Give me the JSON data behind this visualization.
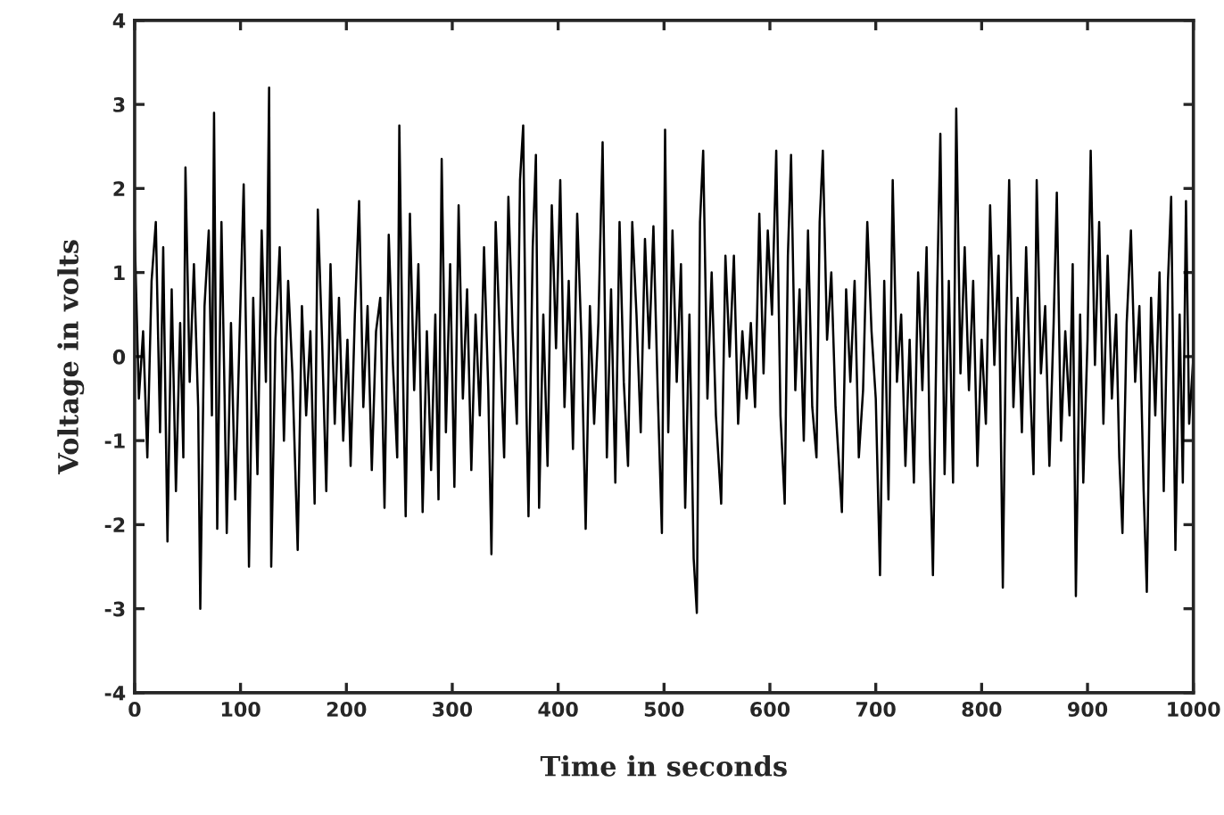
{
  "chart_data": {
    "type": "line",
    "xlabel": "Time in seconds",
    "ylabel": "Voltage in volts",
    "xlim": [
      0,
      1000
    ],
    "xticks": [
      0,
      100,
      200,
      300,
      400,
      500,
      600,
      700,
      800,
      900,
      1000
    ],
    "ylim": [
      -4,
      4
    ],
    "yticks": [
      -4,
      -3,
      -2,
      -1,
      0,
      1,
      2,
      3,
      4
    ],
    "grid": false,
    "marker": "none",
    "line_style": "solid",
    "x": [
      0,
      4,
      8,
      12,
      16,
      20,
      24,
      27,
      31,
      35,
      39,
      43,
      46,
      48,
      52,
      56,
      60,
      62,
      66,
      70,
      73,
      75,
      78,
      82,
      85,
      87,
      91,
      95,
      99,
      103,
      106,
      108,
      112,
      116,
      120,
      124,
      127,
      129,
      133,
      137,
      141,
      145,
      149,
      154,
      158,
      162,
      166,
      170,
      173,
      177,
      181,
      185,
      189,
      193,
      197,
      201,
      204,
      208,
      212,
      216,
      220,
      224,
      228,
      232,
      236,
      240,
      244,
      248,
      250,
      253,
      256,
      260,
      264,
      268,
      272,
      276,
      280,
      284,
      287,
      290,
      294,
      298,
      302,
      306,
      310,
      314,
      318,
      322,
      326,
      330,
      334,
      337,
      341,
      345,
      349,
      353,
      357,
      361,
      364,
      367,
      370,
      372,
      376,
      379,
      382,
      386,
      390,
      394,
      398,
      402,
      406,
      410,
      414,
      418,
      422,
      426,
      430,
      434,
      438,
      442,
      446,
      450,
      454,
      458,
      462,
      466,
      470,
      474,
      478,
      482,
      486,
      490,
      494,
      498,
      501,
      504,
      508,
      512,
      516,
      520,
      524,
      528,
      531,
      534,
      537,
      541,
      545,
      549,
      554,
      558,
      562,
      566,
      570,
      574,
      578,
      582,
      586,
      590,
      594,
      598,
      602,
      606,
      610,
      614,
      617,
      620,
      624,
      628,
      632,
      636,
      640,
      644,
      647,
      650,
      654,
      658,
      662,
      668,
      672,
      676,
      680,
      684,
      688,
      692,
      696,
      700,
      704,
      708,
      712,
      716,
      720,
      724,
      728,
      732,
      736,
      740,
      744,
      748,
      751,
      754,
      758,
      761,
      765,
      769,
      773,
      776,
      780,
      784,
      788,
      792,
      796,
      800,
      804,
      808,
      812,
      816,
      820,
      823,
      826,
      830,
      834,
      838,
      842,
      846,
      849,
      852,
      856,
      860,
      864,
      868,
      871,
      875,
      879,
      883,
      886,
      889,
      893,
      896,
      900,
      903,
      907,
      911,
      915,
      919,
      923,
      927,
      930,
      933,
      937,
      941,
      945,
      949,
      953,
      956,
      960,
      964,
      968,
      972,
      976,
      979,
      983,
      987,
      990,
      993,
      996,
      1000
    ],
    "series": [
      {
        "color": "#000000",
        "values": [
          1.5,
          -0.5,
          0.3,
          -1.2,
          0.9,
          1.6,
          -0.9,
          1.3,
          -2.2,
          0.8,
          -1.6,
          0.4,
          -1.2,
          2.25,
          -0.3,
          1.1,
          -0.6,
          -3.0,
          0.6,
          1.5,
          -0.7,
          2.9,
          -2.05,
          1.6,
          -0.5,
          -2.1,
          0.4,
          -1.7,
          0.2,
          2.05,
          -0.4,
          -2.5,
          0.7,
          -1.4,
          1.5,
          -0.3,
          3.2,
          -2.5,
          0.2,
          1.3,
          -1.0,
          0.9,
          -0.2,
          -2.3,
          0.6,
          -0.7,
          0.3,
          -1.75,
          1.75,
          0.2,
          -1.6,
          1.1,
          -0.8,
          0.7,
          -1.0,
          0.2,
          -1.3,
          0.5,
          1.85,
          -0.6,
          0.6,
          -1.35,
          0.3,
          0.7,
          -1.8,
          1.45,
          -0.1,
          -1.2,
          2.75,
          0.1,
          -1.9,
          1.7,
          -0.4,
          1.1,
          -1.85,
          0.3,
          -1.35,
          0.5,
          -1.7,
          2.35,
          -0.9,
          1.1,
          -1.55,
          1.8,
          -0.5,
          0.8,
          -1.35,
          0.5,
          -0.7,
          1.3,
          -0.4,
          -2.35,
          1.6,
          0.2,
          -1.2,
          1.9,
          0.3,
          -0.8,
          2.1,
          2.75,
          -0.6,
          -1.9,
          1.3,
          2.4,
          -1.8,
          0.5,
          -1.3,
          1.8,
          0.1,
          2.1,
          -0.6,
          0.9,
          -1.1,
          1.7,
          0.2,
          -2.05,
          0.6,
          -0.8,
          0.4,
          2.55,
          -1.2,
          0.8,
          -1.5,
          1.6,
          -0.3,
          -1.3,
          1.6,
          0.5,
          -0.9,
          1.4,
          0.1,
          1.55,
          -0.4,
          -2.1,
          2.7,
          -0.9,
          1.5,
          -0.3,
          1.1,
          -1.8,
          0.5,
          -2.4,
          -3.05,
          1.6,
          2.45,
          -0.5,
          1.0,
          -0.7,
          -1.75,
          1.2,
          0.0,
          1.2,
          -0.8,
          0.3,
          -0.5,
          0.4,
          -0.6,
          1.7,
          -0.2,
          1.5,
          0.5,
          2.45,
          -0.7,
          -1.75,
          1.2,
          2.4,
          -0.4,
          0.8,
          -1.0,
          1.5,
          -0.6,
          -1.2,
          1.6,
          2.45,
          0.2,
          1.0,
          -0.6,
          -1.85,
          0.8,
          -0.3,
          0.9,
          -1.2,
          -0.4,
          1.6,
          0.3,
          -0.5,
          -2.6,
          0.9,
          -1.7,
          2.1,
          -0.3,
          0.5,
          -1.3,
          0.2,
          -1.5,
          1.0,
          -0.4,
          1.3,
          -1.1,
          -2.6,
          0.8,
          2.65,
          -1.4,
          0.9,
          -1.5,
          2.95,
          -0.2,
          1.3,
          -0.4,
          0.9,
          -1.3,
          0.2,
          -0.8,
          1.8,
          -0.1,
          1.2,
          -2.75,
          0.3,
          2.1,
          -0.6,
          0.7,
          -0.9,
          1.3,
          -0.4,
          -1.4,
          2.1,
          -0.2,
          0.6,
          -1.3,
          0.4,
          1.95,
          -1.0,
          0.3,
          -0.7,
          1.1,
          -2.85,
          0.5,
          -1.5,
          0.2,
          2.45,
          -0.1,
          1.6,
          -0.8,
          1.2,
          -0.5,
          0.5,
          -1.2,
          -2.1,
          0.4,
          1.5,
          -0.3,
          0.6,
          -1.6,
          -2.8,
          0.7,
          -0.7,
          1.0,
          -1.6,
          0.9,
          1.9,
          -2.3,
          0.5,
          -1.5,
          1.85,
          -0.8,
          0.0
        ]
      }
    ]
  }
}
